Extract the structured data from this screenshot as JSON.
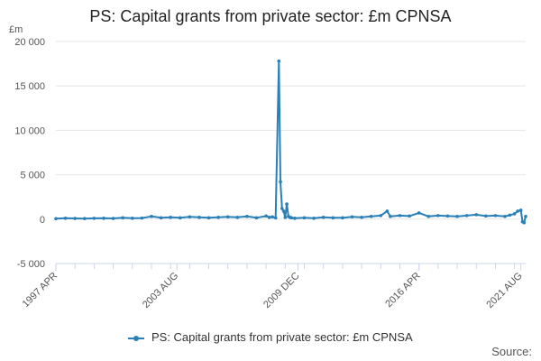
{
  "title": "PS: Capital grants from private sector: £m CPNSA",
  "source_label": "Source:",
  "chart_data": {
    "type": "line",
    "title": "PS: Capital grants from private sector: £m CPNSA",
    "ylabel": "£m",
    "xlabel": "",
    "ylim": [
      -5000,
      20000
    ],
    "yticks": [
      -5000,
      0,
      5000,
      10000,
      15000,
      20000
    ],
    "ytick_labels": [
      "-5 000",
      "0",
      "5 000",
      "10 000",
      "15 000",
      "20 000"
    ],
    "x_range": [
      "1997-04",
      "2021-11"
    ],
    "xtick_labels": [
      "1997 APR",
      "2003 AUG",
      "2009 DEC",
      "2016 APR",
      "2021 AUG"
    ],
    "xtick_dates": [
      "1997-04",
      "2003-08",
      "2009-12",
      "2016-04",
      "2021-08"
    ],
    "grid": true,
    "legend_position": "bottom",
    "color": "#2980b9",
    "series": [
      {
        "name": "PS: Capital grants from private sector: £m CPNSA",
        "x": [
          "1997-04",
          "1997-10",
          "1998-04",
          "1998-10",
          "1999-04",
          "1999-10",
          "2000-04",
          "2000-10",
          "2001-04",
          "2001-10",
          "2002-04",
          "2002-10",
          "2003-04",
          "2003-10",
          "2004-04",
          "2004-10",
          "2005-04",
          "2005-10",
          "2006-04",
          "2006-10",
          "2007-04",
          "2007-10",
          "2008-04",
          "2008-06",
          "2008-08",
          "2008-10",
          "2008-12",
          "2009-01",
          "2009-02",
          "2009-03",
          "2009-04",
          "2009-05",
          "2009-06",
          "2009-07",
          "2009-08",
          "2009-10",
          "2010-04",
          "2010-10",
          "2011-04",
          "2011-10",
          "2012-04",
          "2012-10",
          "2013-04",
          "2013-10",
          "2014-04",
          "2014-08",
          "2014-10",
          "2015-04",
          "2015-10",
          "2016-04",
          "2016-10",
          "2017-04",
          "2017-10",
          "2018-04",
          "2018-10",
          "2019-04",
          "2019-10",
          "2020-04",
          "2020-10",
          "2021-01",
          "2021-04",
          "2021-06",
          "2021-08",
          "2021-09",
          "2021-10",
          "2021-11"
        ],
        "values": [
          50,
          100,
          80,
          60,
          90,
          100,
          80,
          150,
          100,
          120,
          300,
          150,
          200,
          150,
          250,
          200,
          150,
          200,
          250,
          200,
          300,
          150,
          350,
          200,
          250,
          150,
          17800,
          4200,
          1200,
          900,
          200,
          1700,
          300,
          200,
          150,
          100,
          150,
          100,
          200,
          150,
          150,
          250,
          200,
          300,
          400,
          900,
          300,
          400,
          350,
          700,
          300,
          400,
          350,
          300,
          400,
          500,
          350,
          400,
          300,
          450,
          600,
          900,
          1000,
          -300,
          -400,
          300
        ]
      }
    ]
  }
}
